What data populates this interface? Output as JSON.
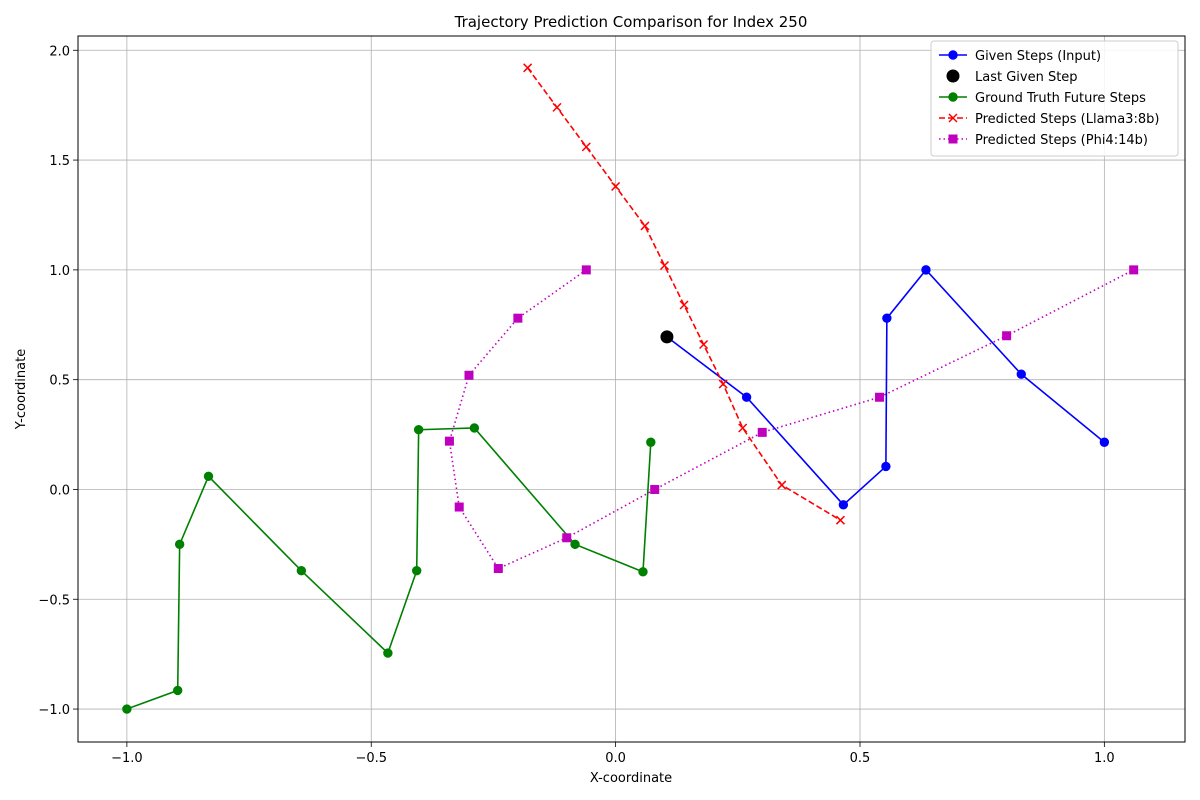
{
  "chart_data": {
    "type": "line",
    "title": "Trajectory Prediction Comparison for Index 250",
    "xlabel": "X-coordinate",
    "ylabel": "Y-coordinate",
    "xlim": [
      -1.1,
      1.165
    ],
    "ylim": [
      -1.15,
      2.065
    ],
    "xticks": [
      -1.0,
      -0.5,
      0.0,
      0.5,
      1.0
    ],
    "xtick_labels": [
      "−1.0",
      "−0.5",
      "0.0",
      "0.5",
      "1.0"
    ],
    "yticks": [
      -1.0,
      -0.5,
      0.0,
      0.5,
      1.0,
      1.5,
      2.0
    ],
    "ytick_labels": [
      "−1.0",
      "−0.5",
      "0.0",
      "0.5",
      "1.0",
      "1.5",
      "2.0"
    ],
    "grid": true,
    "legend_position": "top-right",
    "series": [
      {
        "name": "Given Steps (Input)",
        "color": "#0000ff",
        "line": "solid",
        "marker": "circle",
        "x": [
          1.0,
          0.83,
          0.635,
          0.555,
          0.553,
          0.466,
          0.268,
          0.105
        ],
        "y": [
          0.215,
          0.525,
          1.0,
          0.78,
          0.105,
          -0.07,
          0.42,
          0.695
        ]
      },
      {
        "name": "Last Given Step",
        "color": "#000000",
        "line": "none",
        "marker": "big-circle",
        "x": [
          0.105
        ],
        "y": [
          0.695
        ]
      },
      {
        "name": "Ground Truth Future Steps",
        "color": "#008000",
        "line": "solid",
        "marker": "circle",
        "x": [
          0.072,
          0.056,
          -0.083,
          -0.289,
          -0.403,
          -0.407,
          -0.466,
          -0.643,
          -0.833,
          -0.892,
          -0.896,
          -1.0
        ],
        "y": [
          0.215,
          -0.375,
          -0.25,
          0.28,
          0.272,
          -0.37,
          -0.745,
          -0.37,
          0.06,
          -0.25,
          -0.915,
          -1.0
        ]
      },
      {
        "name": "Predicted Steps (Llama3:8b)",
        "color": "#ff0000",
        "line": "dashed",
        "marker": "x",
        "x": [
          -0.18,
          -0.12,
          -0.06,
          0.0,
          0.06,
          0.1,
          0.14,
          0.18,
          0.22,
          0.26,
          0.34,
          0.46
        ],
        "y": [
          1.92,
          1.74,
          1.56,
          1.38,
          1.2,
          1.02,
          0.84,
          0.66,
          0.48,
          0.28,
          0.02,
          -0.14
        ]
      },
      {
        "name": "Predicted Steps (Phi4:14b)",
        "color": "#bf00bf",
        "line": "dotted",
        "marker": "square",
        "x": [
          -0.06,
          -0.2,
          -0.3,
          -0.34,
          -0.32,
          -0.24,
          -0.1,
          0.08,
          0.3,
          0.54,
          0.8,
          1.06
        ],
        "y": [
          1.0,
          0.78,
          0.52,
          0.22,
          -0.08,
          -0.36,
          -0.22,
          0.0,
          0.26,
          0.42,
          0.7,
          1.0
        ]
      }
    ]
  }
}
